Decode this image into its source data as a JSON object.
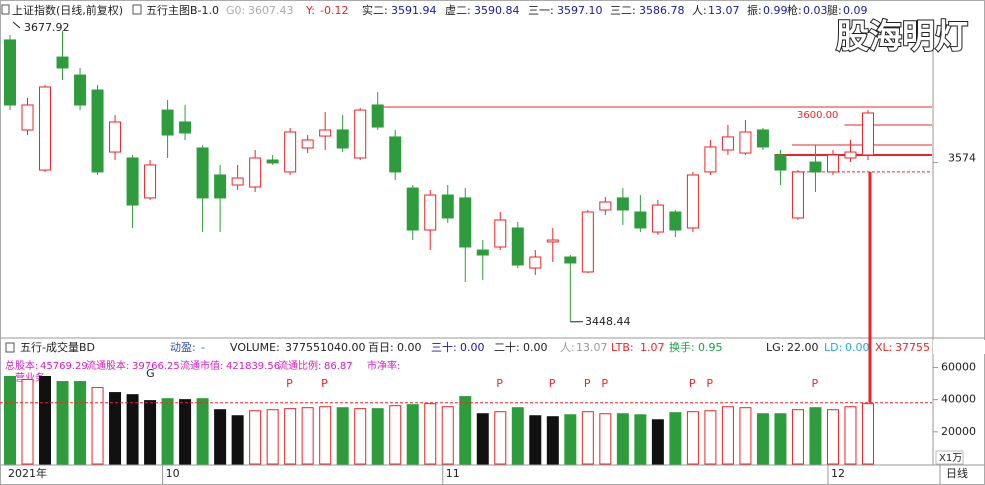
{
  "chart_data": [
    {
      "type": "candlestick",
      "title": "上证指数(日线,前复权)",
      "indicator": "五行主图B-1.0",
      "stats": [
        {
          "label": "G0:",
          "value": "3607.43"
        },
        {
          "label": "Y:",
          "value": "-0.12"
        },
        {
          "label": "实二:",
          "value": "3591.94"
        },
        {
          "label": "虚二:",
          "value": "3590.84"
        },
        {
          "label": "三一:",
          "value": "3597.10"
        },
        {
          "label": "三二:",
          "value": "3586.78"
        },
        {
          "label": "人:",
          "value": "13.07"
        },
        {
          "label": "振:",
          "value": "0.99"
        },
        {
          "label": "枪:",
          "value": "0.03"
        },
        {
          "label": "腿:",
          "value": "0.09"
        }
      ],
      "watermark": "股海明灯",
      "annotation": "3600.00",
      "categories": [
        "2021年",
        null,
        null,
        null,
        null,
        null,
        null,
        null,
        null,
        "10",
        null,
        null,
        null,
        null,
        null,
        null,
        null,
        null,
        null,
        null,
        null,
        null,
        null,
        null,
        null,
        "11",
        null,
        null,
        null,
        null,
        null,
        null,
        null,
        null,
        null,
        null,
        null,
        null,
        null,
        null,
        null,
        null,
        null,
        null,
        null,
        null,
        null,
        "12",
        null,
        null
      ],
      "ohlc": [
        [
          3670.7,
          3674.6,
          3615.4,
          3619.4
        ],
        [
          3599.7,
          3624.9,
          3595.7,
          3619.4
        ],
        [
          3568.1,
          3635.2,
          3566.6,
          3633.6
        ],
        [
          3657.2,
          3677.92,
          3639.1,
          3648.6
        ],
        [
          3643.0,
          3648.6,
          3615.4,
          3619.4
        ],
        [
          3631.2,
          3635.2,
          3564.2,
          3566.6
        ],
        [
          3582.3,
          3611.5,
          3576.0,
          3606.0
        ],
        [
          3577.6,
          3580.0,
          3522.4,
          3540.5
        ],
        [
          3546.1,
          3576.0,
          3544.5,
          3572.1
        ],
        [
          3615.4,
          3623.3,
          3577.6,
          3595.7
        ],
        [
          3606.0,
          3619.4,
          3591.8,
          3597.3
        ],
        [
          3585.5,
          3587.8,
          3519.2,
          3546.1
        ],
        [
          3564.2,
          3572.1,
          3519.2,
          3546.1
        ],
        [
          3556.3,
          3572.1,
          3552.4,
          3561.8
        ],
        [
          3554.7,
          3583.9,
          3550.8,
          3577.6
        ],
        [
          3576.0,
          3580.0,
          3572.1,
          3573.7
        ],
        [
          3566.6,
          3601.3,
          3564.2,
          3598.1
        ],
        [
          3585.5,
          3595.7,
          3581.5,
          3591.8
        ],
        [
          3594.9,
          3613.9,
          3583.9,
          3599.7
        ],
        [
          3599.7,
          3611.5,
          3582.3,
          3585.5
        ],
        [
          3577.6,
          3617.0,
          3576.0,
          3615.4
        ],
        [
          3619.4,
          3629.6,
          3599.7,
          3602.0
        ],
        [
          3594.2,
          3599.7,
          3560.2,
          3566.6
        ],
        [
          3553.9,
          3556.3,
          3512.9,
          3520.8
        ],
        [
          3520.8,
          3552.4,
          3505.0,
          3548.4
        ],
        [
          3548.4,
          3556.3,
          3526.3,
          3530.3
        ],
        [
          3546.1,
          3553.9,
          3479.8,
          3507.4
        ],
        [
          3505.0,
          3512.9,
          3481.4,
          3501.1
        ],
        [
          3507.4,
          3535.0,
          3505.0,
          3528.7
        ],
        [
          3522.4,
          3527.1,
          3490.8,
          3493.2
        ],
        [
          3490.8,
          3505.0,
          3485.3,
          3499.5
        ],
        [
          3511.4,
          3522.4,
          3495.6,
          3512.9
        ],
        [
          3499.5,
          3501.1,
          3448.44,
          3494.8
        ],
        [
          3487.7,
          3536.6,
          3486.9,
          3535.0
        ],
        [
          3536.6,
          3546.8,
          3532.6,
          3542.9
        ],
        [
          3546.1,
          3553.9,
          3524.8,
          3536.6
        ],
        [
          3535.0,
          3548.4,
          3519.2,
          3522.4
        ],
        [
          3519.2,
          3544.5,
          3516.9,
          3540.5
        ],
        [
          3535.0,
          3536.6,
          3515.3,
          3520.8
        ],
        [
          3522.4,
          3566.6,
          3519.2,
          3564.2
        ],
        [
          3566.6,
          3591.8,
          3564.2,
          3586.3
        ],
        [
          3583.9,
          3603.6,
          3580.0,
          3594.2
        ],
        [
          3581.5,
          3607.6,
          3580.0,
          3598.1
        ],
        [
          3599.7,
          3601.3,
          3583.9,
          3586.3
        ],
        [
          3580.0,
          3583.9,
          3556.3,
          3568.1
        ],
        [
          3530.3,
          3568.1,
          3528.7,
          3566.6
        ],
        [
          3574.4,
          3587.8,
          3550.8,
          3566.6
        ],
        [
          3566.6,
          3583.9,
          3564.2,
          3580.0
        ],
        [
          3577.6,
          3591.8,
          3574.4,
          3582.3
        ],
        [
          3580.0,
          3615.4,
          3576.0,
          3613.1
        ]
      ],
      "up_color": "#e8262a",
      "down_color": "#2e9c3c",
      "levels": [
        3617.8,
        3603.6,
        3587.8,
        3580.0,
        3566.6
      ],
      "level_color": "#e8262a",
      "ylim": [
        3438,
        3688
      ],
      "yticks": [
        3574
      ]
    },
    {
      "type": "bar",
      "title": "五行-成交量BD",
      "stats": [
        {
          "label": "动盈:",
          "value": "-"
        },
        {
          "label": "VOLUME:",
          "value": "377551040.00"
        },
        {
          "label": "百日:",
          "value": "0.00"
        },
        {
          "label": "三十:",
          "value": "0.00"
        },
        {
          "label": "二十:",
          "value": "0.00"
        },
        {
          "label": "人:",
          "value": "13.07"
        },
        {
          "label": "LTB:",
          "value": "1.07"
        },
        {
          "label": "换手:",
          "value": "0.95"
        },
        {
          "label": "LG:",
          "value": "22.00"
        },
        {
          "label": "LD:",
          "value": "0.00"
        },
        {
          "label": "XL:",
          "value": "37755"
        }
      ],
      "info": [
        {
          "label": "总股本:",
          "value": "45769.29"
        },
        {
          "label": "流通股本:",
          "value": "39766.25"
        },
        {
          "label": "流通市值:",
          "value": "421839.56"
        },
        {
          "label": "流通比例:",
          "value": "86.87"
        }
      ],
      "info_labels": [
        "市净率:",
        "营业务:"
      ],
      "unit": "X1万",
      "period": "日线",
      "marker": "G",
      "marker_bar": 8,
      "signal_label": "P",
      "signal_bars": [
        16,
        18,
        28,
        31,
        33,
        34,
        39,
        40,
        46
      ],
      "values": [
        54400,
        52500,
        54400,
        51250,
        51250,
        47500,
        44400,
        43100,
        39400,
        40600,
        40000,
        40600,
        33750,
        30000,
        33100,
        33750,
        34400,
        35000,
        35600,
        35000,
        34400,
        34400,
        36250,
        36900,
        37500,
        35600,
        41900,
        31250,
        32500,
        35000,
        30000,
        29400,
        30600,
        32500,
        31250,
        31250,
        30600,
        27500,
        31900,
        32500,
        33100,
        35600,
        35000,
        31250,
        31250,
        33750,
        35000,
        33750,
        35600,
        37500
      ],
      "colors": [
        "#2e9c3c",
        "#e8262a",
        "#111111",
        "#2e9c3c",
        "#2e9c3c",
        "#e8262a",
        "#111111",
        "#111111",
        "#111111",
        "#2e9c3c",
        "#111111",
        "#2e9c3c",
        "#111111",
        "#111111",
        "#e8262a",
        "#e8262a",
        "#e8262a",
        "#e8262a",
        "#e8262a",
        "#2e9c3c",
        "#e8262a",
        "#2e9c3c",
        "#e8262a",
        "#2e9c3c",
        "#e8262a",
        "#e8262a",
        "#2e9c3c",
        "#111111",
        "#e8262a",
        "#2e9c3c",
        "#111111",
        "#111111",
        "#2e9c3c",
        "#e8262a",
        "#e8262a",
        "#2e9c3c",
        "#2e9c3c",
        "#111111",
        "#2e9c3c",
        "#e8262a",
        "#e8262a",
        "#e8262a",
        "#e8262a",
        "#2e9c3c",
        "#2e9c3c",
        "#e8262a",
        "#2e9c3c",
        "#e8262a",
        "#e8262a",
        "#e8262a"
      ],
      "reference_line": 38100,
      "ylim": [
        0,
        69000
      ],
      "yticks": [
        20000,
        40000,
        60000
      ]
    }
  ]
}
